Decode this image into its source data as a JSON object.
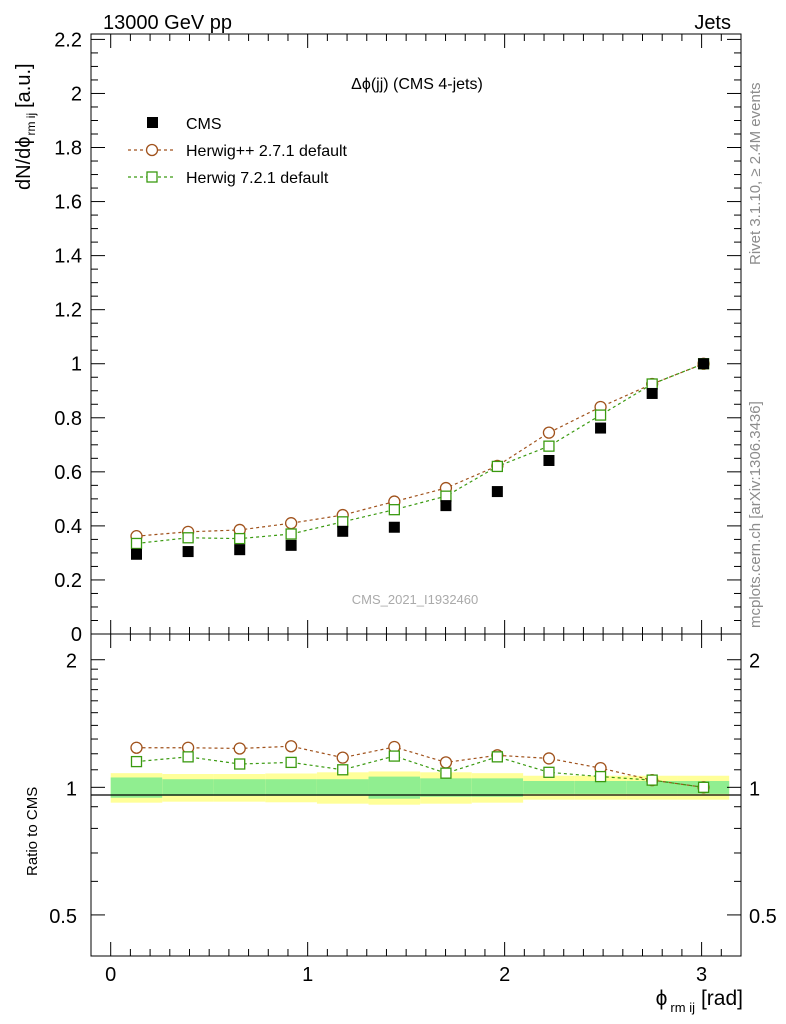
{
  "header": {
    "left": "13000 GeV pp",
    "right": "Jets"
  },
  "side_text": {
    "rivet": "Rivet 3.1.10, ≥ 2.4M events",
    "mcplots": "mcplots.cern.ch [arXiv:1306.3436]"
  },
  "watermark": "CMS_2021_I1932460",
  "colors": {
    "cms": "#000000",
    "herwigpp": "#a0521c",
    "herwig7": "#3a9a10",
    "band_inner": "#90ee90",
    "band_outer": "#ffff99"
  },
  "chart_data": [
    {
      "type": "scatter",
      "title": "Δϕ(jj) (CMS 4-jets)",
      "ylabel_main": "dN/dϕ",
      "ylabel_sub": "rm ij",
      "ylabel_unit": "[a.u.]",
      "xlim": [
        -0.1,
        3.2
      ],
      "ylim": [
        0,
        2.22
      ],
      "yticks": [
        0,
        0.2,
        0.4,
        0.6,
        0.8,
        1,
        1.2,
        1.4,
        1.6,
        1.8,
        2,
        2.2
      ],
      "ytick_labels": [
        "0",
        "0.2",
        "0.4",
        "0.6",
        "0.8",
        "1",
        "1.2",
        "1.4",
        "1.6",
        "1.8",
        "2",
        "2.2"
      ],
      "legend_position": "top-left",
      "x": [
        0.131,
        0.393,
        0.655,
        0.916,
        1.178,
        1.44,
        1.702,
        1.963,
        2.225,
        2.487,
        2.749,
        3.01
      ],
      "series": [
        {
          "name": "CMS",
          "values": [
            0.295,
            0.305,
            0.312,
            0.328,
            0.38,
            0.395,
            0.475,
            0.527,
            0.642,
            0.762,
            0.89,
            1.0
          ]
        },
        {
          "name": "Herwig++ 2.7.1 default",
          "values": [
            0.362,
            0.378,
            0.385,
            0.41,
            0.44,
            0.49,
            0.54,
            0.622,
            0.745,
            0.84,
            0.925,
            1.0
          ]
        },
        {
          "name": "Herwig 7.2.1 default",
          "values": [
            0.335,
            0.356,
            0.353,
            0.37,
            0.415,
            0.46,
            0.51,
            0.62,
            0.695,
            0.81,
            0.925,
            1.0
          ]
        }
      ]
    },
    {
      "type": "scatter",
      "ylabel": "Ratio to CMS",
      "xlabel_main": "ϕ",
      "xlabel_sub": "rm ij",
      "xlabel_unit": "[rad]",
      "ylim": [
        0.4,
        2.3
      ],
      "log_y": true,
      "xticks": [
        0,
        1,
        2,
        3
      ],
      "xtick_labels": [
        "0",
        "1",
        "2",
        "3"
      ],
      "yticks": [
        0.5,
        1,
        2
      ],
      "ytick_labels": [
        "0.5",
        "1",
        "2"
      ],
      "x": [
        0.131,
        0.393,
        0.655,
        0.916,
        1.178,
        1.44,
        1.702,
        1.963,
        2.225,
        2.487,
        2.749,
        3.01
      ],
      "band_edges": [
        0,
        0.262,
        0.524,
        0.785,
        1.047,
        1.309,
        1.571,
        1.833,
        2.094,
        2.356,
        2.618,
        2.88,
        3.14
      ],
      "band_inner": [
        0.055,
        0.045,
        0.045,
        0.045,
        0.045,
        0.06,
        0.05,
        0.05,
        0.035,
        0.035,
        0.035,
        0.035
      ],
      "band_outer": [
        0.08,
        0.075,
        0.075,
        0.078,
        0.085,
        0.09,
        0.085,
        0.08,
        0.065,
        0.065,
        0.065,
        0.065
      ],
      "series": [
        {
          "name": "Herwig++ 2.7.1 default",
          "values": [
            1.24,
            1.24,
            1.235,
            1.25,
            1.175,
            1.245,
            1.145,
            1.19,
            1.17,
            1.11,
            1.04,
            1.0
          ]
        },
        {
          "name": "Herwig 7.2.1 default",
          "values": [
            1.15,
            1.18,
            1.135,
            1.145,
            1.1,
            1.185,
            1.08,
            1.18,
            1.085,
            1.06,
            1.04,
            1.0
          ]
        }
      ]
    }
  ]
}
